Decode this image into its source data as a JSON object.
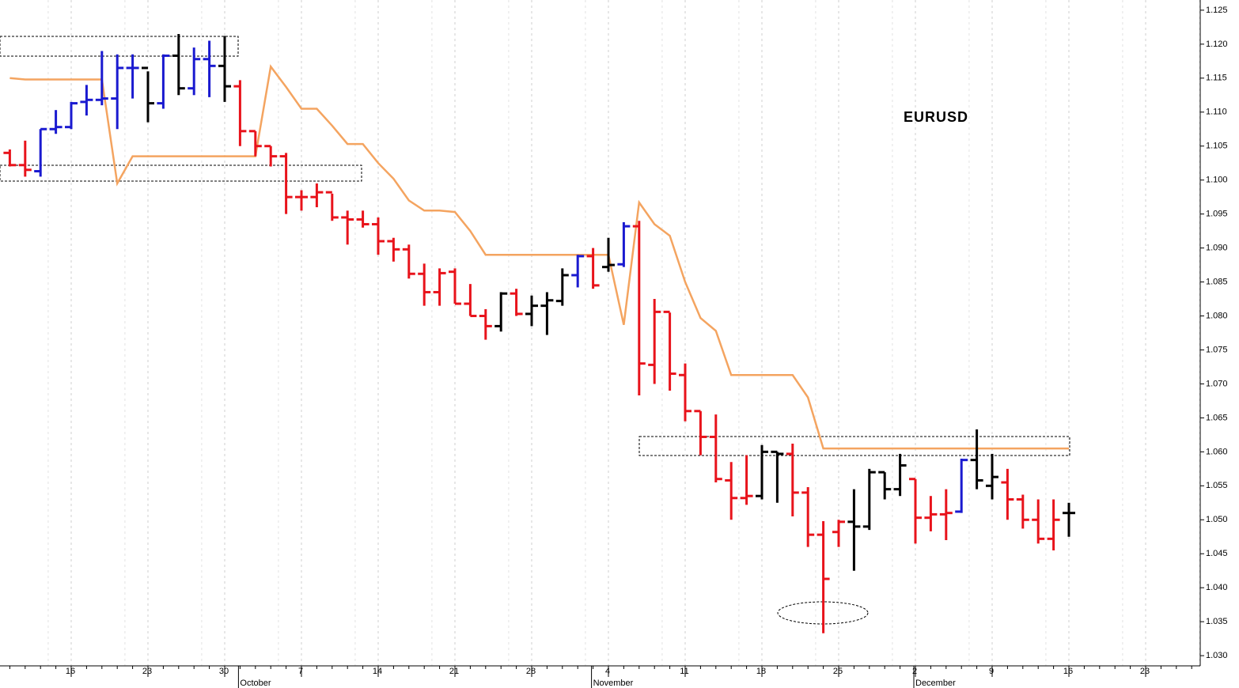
{
  "chart_data": {
    "type": "ohlc",
    "title": "EURUSD",
    "categories": [
      null,
      null,
      null,
      null,
      "16",
      null,
      null,
      null,
      null,
      "23",
      null,
      null,
      null,
      null,
      "30",
      null,
      null,
      null,
      null,
      "7",
      null,
      null,
      null,
      null,
      "14",
      null,
      null,
      null,
      null,
      "21",
      null,
      null,
      null,
      null,
      "28",
      null,
      null,
      null,
      null,
      "4",
      null,
      null,
      null,
      null,
      "11",
      null,
      null,
      null,
      null,
      "18",
      null,
      null,
      null,
      null,
      "25",
      null,
      null,
      null,
      null,
      "2",
      null,
      null,
      null,
      null,
      "9",
      null,
      null,
      null,
      null,
      "16",
      null,
      null,
      null,
      null,
      "23",
      null,
      null,
      null
    ],
    "month_categories": [
      null,
      null,
      null,
      null,
      null,
      null,
      null,
      null,
      null,
      null,
      null,
      null,
      null,
      null,
      null,
      "October",
      null,
      null,
      null,
      null,
      null,
      null,
      null,
      null,
      null,
      null,
      null,
      null,
      null,
      null,
      null,
      null,
      null,
      null,
      null,
      null,
      null,
      null,
      "November",
      null,
      null,
      null,
      null,
      null,
      null,
      null,
      null,
      null,
      null,
      null,
      null,
      null,
      null,
      null,
      null,
      null,
      null,
      null,
      null,
      "December",
      null,
      null,
      null,
      null,
      null,
      null,
      null,
      null,
      null,
      null,
      null,
      null,
      null,
      null,
      null,
      null,
      null,
      null
    ],
    "open": [
      1.104,
      1.1022,
      1.1013,
      1.1075,
      1.1078,
      1.1115,
      1.1118,
      1.112,
      1.1165,
      1.1165,
      1.1113,
      1.1183,
      1.1135,
      1.1178,
      1.1168,
      1.1138,
      1.1072,
      1.105,
      1.1035,
      1.0975,
      1.0975,
      1.0982,
      1.0945,
      1.0942,
      1.0935,
      1.091,
      1.0898,
      1.0862,
      1.0835,
      1.0865,
      1.0818,
      1.08,
      1.0785,
      1.0833,
      1.0803,
      1.0815,
      1.0822,
      1.086,
      1.0888,
      1.0872,
      1.0876,
      1.0932,
      1.0728,
      1.0806,
      1.0713,
      1.066,
      1.0622,
      1.0558,
      1.0532,
      1.0535,
      1.06,
      1.0597,
      1.054,
      1.0478,
      1.0482,
      1.0497,
      1.049,
      1.057,
      1.0545,
      1.056,
      1.0503,
      1.0508,
      1.0512,
      1.0588,
      1.055,
      1.0555,
      1.053,
      1.05,
      1.0472,
      1.051,
      null,
      null,
      null,
      null,
      null,
      null,
      null,
      null
    ],
    "high": [
      1.1045,
      1.1058,
      1.1075,
      1.1103,
      1.1115,
      1.114,
      1.119,
      1.1185,
      1.1185,
      1.116,
      1.1185,
      1.1215,
      1.1195,
      1.1205,
      1.1212,
      1.1147,
      1.1072,
      1.105,
      1.104,
      1.0985,
      1.0995,
      1.098,
      1.0955,
      1.0955,
      1.0945,
      1.0915,
      1.0905,
      1.0877,
      1.087,
      1.087,
      1.0847,
      1.081,
      1.0835,
      1.084,
      1.083,
      1.0835,
      1.087,
      1.089,
      1.09,
      1.0915,
      1.0938,
      1.094,
      1.0825,
      1.0805,
      1.073,
      1.066,
      1.0655,
      1.0585,
      1.0595,
      1.061,
      1.06,
      1.0612,
      1.0548,
      1.0498,
      1.05,
      1.0545,
      1.0575,
      1.057,
      1.0597,
      1.056,
      1.0535,
      1.0545,
      1.059,
      1.0633,
      1.0597,
      1.0575,
      1.0537,
      1.053,
      1.053,
      1.0525,
      null,
      null,
      null,
      null,
      null,
      null,
      null,
      null
    ],
    "low": [
      1.102,
      1.1005,
      1.1005,
      1.1068,
      1.1075,
      1.1095,
      1.111,
      1.1075,
      1.112,
      1.1085,
      1.1105,
      1.1125,
      1.1125,
      1.1122,
      1.1115,
      1.105,
      1.1035,
      1.102,
      1.095,
      1.0955,
      1.096,
      1.094,
      1.0905,
      1.093,
      1.089,
      1.088,
      1.0855,
      1.0815,
      1.0815,
      1.0818,
      1.08,
      1.0765,
      1.0777,
      1.08,
      1.0785,
      1.0772,
      1.0815,
      1.0842,
      1.084,
      1.0865,
      1.0872,
      1.0683,
      1.07,
      1.069,
      1.0645,
      1.0595,
      1.0555,
      1.05,
      1.0522,
      1.053,
      1.0525,
      1.0505,
      1.046,
      1.0333,
      1.046,
      1.0425,
      1.0485,
      1.053,
      1.0535,
      1.0465,
      1.0483,
      1.047,
      1.051,
      1.0545,
      1.053,
      1.05,
      1.0487,
      1.0465,
      1.0455,
      1.0475,
      null,
      null,
      null,
      null,
      null,
      null,
      null,
      null
    ],
    "close": [
      1.1022,
      1.1015,
      1.1075,
      1.1078,
      1.1113,
      1.1118,
      1.112,
      1.1165,
      1.1165,
      1.1113,
      1.1183,
      1.1135,
      1.1178,
      1.1168,
      1.1138,
      1.1072,
      1.105,
      1.1035,
      1.0975,
      1.0975,
      1.0982,
      1.0945,
      1.0942,
      1.0935,
      1.091,
      1.0898,
      1.0862,
      1.0835,
      1.0863,
      1.0818,
      1.08,
      1.0785,
      1.0833,
      1.0803,
      1.0815,
      1.0823,
      1.086,
      1.0888,
      1.0845,
      1.0875,
      1.0932,
      1.073,
      1.0806,
      1.0715,
      1.066,
      1.0622,
      1.056,
      1.0532,
      1.0535,
      1.06,
      1.0597,
      1.054,
      1.0478,
      1.0413,
      1.0497,
      1.049,
      1.057,
      1.0545,
      1.058,
      1.0503,
      1.0508,
      1.051,
      1.0588,
      1.0558,
      1.0563,
      1.053,
      1.05,
      1.0472,
      1.05,
      1.051,
      null,
      null,
      null,
      null,
      null,
      null,
      null,
      null
    ],
    "bar_colors": [
      "#e8131b",
      "#e8131b",
      "#1a1ad0",
      "#1a1ad0",
      "#1a1ad0",
      "#1a1ad0",
      "#1a1ad0",
      "#1a1ad0",
      "#1a1ad0",
      "#000000",
      "#1a1ad0",
      "#000000",
      "#1a1ad0",
      "#1a1ad0",
      "#000000",
      "#e8131b",
      "#e8131b",
      "#e8131b",
      "#e8131b",
      "#e8131b",
      "#e8131b",
      "#e8131b",
      "#e8131b",
      "#e8131b",
      "#e8131b",
      "#e8131b",
      "#e8131b",
      "#e8131b",
      "#e8131b",
      "#e8131b",
      "#e8131b",
      "#e8131b",
      "#000000",
      "#e8131b",
      "#000000",
      "#000000",
      "#000000",
      "#1a1ad0",
      "#e8131b",
      "#000000",
      "#1a1ad0",
      "#e8131b",
      "#e8131b",
      "#e8131b",
      "#e8131b",
      "#e8131b",
      "#e8131b",
      "#e8131b",
      "#e8131b",
      "#000000",
      "#000000",
      "#e8131b",
      "#e8131b",
      "#e8131b",
      "#e8131b",
      "#000000",
      "#000000",
      "#000000",
      "#000000",
      "#e8131b",
      "#e8131b",
      "#e8131b",
      "#1a1ad0",
      "#000000",
      "#000000",
      "#e8131b",
      "#e8131b",
      "#e8131b",
      "#e8131b",
      "#000000",
      null,
      null,
      null,
      null,
      null,
      null,
      null,
      null
    ],
    "stop_line": {
      "color": "#f4a460",
      "values": [
        1.115,
        1.1148,
        1.1148,
        1.1148,
        1.1148,
        1.1148,
        1.1148,
        1.0995,
        1.1035,
        1.1035,
        1.1035,
        1.1035,
        1.1035,
        1.1035,
        1.1035,
        1.1035,
        1.1035,
        1.1167,
        1.1137,
        1.1105,
        1.1105,
        1.108,
        1.1053,
        1.1053,
        1.1025,
        1.1002,
        1.097,
        1.0955,
        1.0955,
        1.0953,
        1.0925,
        1.089,
        1.089,
        1.089,
        1.089,
        1.089,
        1.089,
        1.089,
        1.089,
        1.089,
        1.0787,
        1.0967,
        1.0935,
        1.0918,
        1.085,
        1.0797,
        1.0778,
        1.0713,
        1.0713,
        1.0713,
        1.0713,
        1.0713,
        1.068,
        1.0605,
        1.0605,
        1.0605,
        1.0605,
        1.0605,
        1.0605,
        1.0605,
        1.0605,
        1.0605,
        1.0605,
        1.0605,
        1.0605,
        1.0605,
        1.0605,
        1.0605,
        1.0605,
        1.0605,
        null,
        null,
        null,
        null,
        null,
        null,
        null,
        null
      ]
    },
    "ylim": [
      1.0285,
      1.1265
    ],
    "yticks": [
      {
        "value": 1.03,
        "label": "1.030"
      },
      1.035,
      {
        "value": 1.04,
        "label": "1.040"
      },
      1.045,
      {
        "value": 1.05,
        "label": "1.050"
      },
      1.055,
      {
        "value": 1.06,
        "label": "1.060"
      },
      1.065,
      {
        "value": 1.07,
        "label": "1.070"
      },
      1.075,
      {
        "value": 1.08,
        "label": "1.080"
      },
      1.085,
      {
        "value": 1.09,
        "label": "1.090"
      },
      1.095,
      {
        "value": 1.1,
        "label": "1.100"
      },
      1.105,
      {
        "value": 1.11,
        "label": "1.110"
      },
      1.115,
      {
        "value": 1.12,
        "label": "1.120"
      },
      1.125
    ],
    "grid": true
  }
}
